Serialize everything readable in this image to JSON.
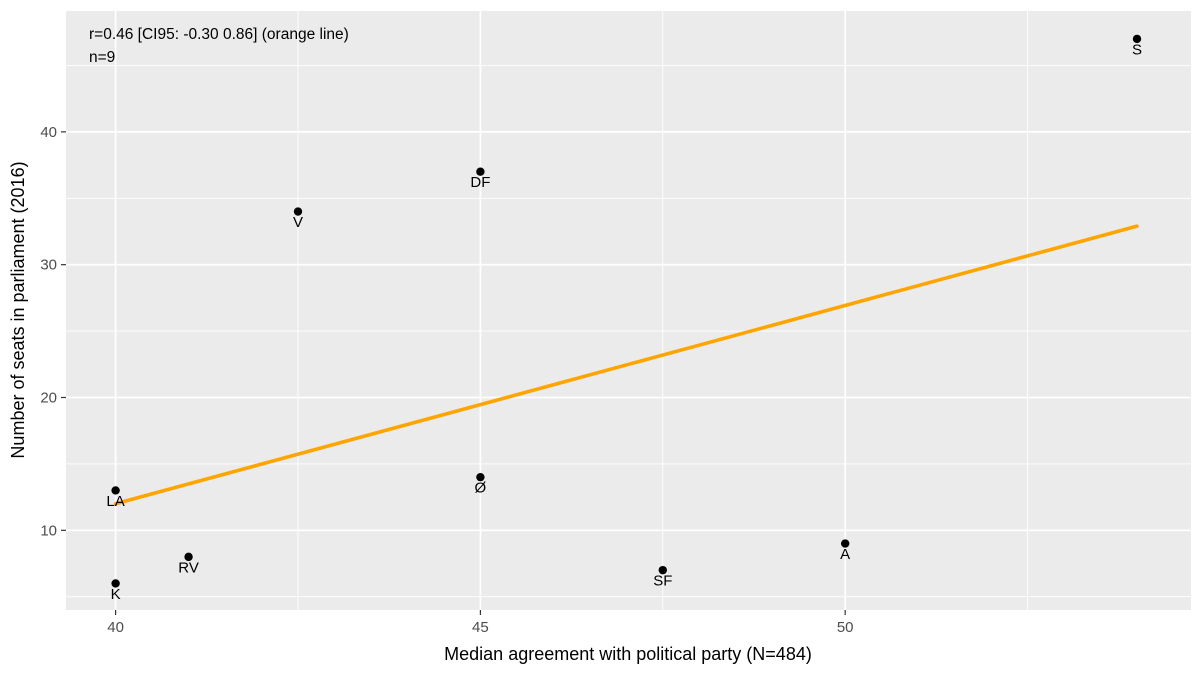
{
  "chart_data": {
    "type": "scatter",
    "title": "",
    "annotation_lines": [
      "r=0.46 [CI95: -0.30 0.86] (orange line)",
      "n=9"
    ],
    "xlabel": "Median agreement with political party (N=484)",
    "ylabel": "Number of seats in parliament (2016)",
    "points": [
      {
        "label": "S",
        "x": 54,
        "y": 47
      },
      {
        "label": "DF",
        "x": 45,
        "y": 37
      },
      {
        "label": "V",
        "x": 42.5,
        "y": 34
      },
      {
        "label": "Ø",
        "x": 45,
        "y": 14
      },
      {
        "label": "LA",
        "x": 40,
        "y": 13
      },
      {
        "label": "A",
        "x": 50,
        "y": 9
      },
      {
        "label": "RV",
        "x": 41,
        "y": 8
      },
      {
        "label": "SF",
        "x": 47.5,
        "y": 7
      },
      {
        "label": "K",
        "x": 40,
        "y": 6
      }
    ],
    "regression_line": {
      "x1": 40,
      "y1": 12.0,
      "x2": 54,
      "y2": 32.9,
      "r": 0.46,
      "ci95_low": -0.3,
      "ci95_high": 0.86,
      "n": 9,
      "color": "#FFA500"
    },
    "x_ticks": [
      40,
      45,
      50
    ],
    "y_ticks": [
      10,
      20,
      30,
      40
    ],
    "x_minor_ticks": [
      42.5,
      47.5,
      52.5
    ],
    "y_minor_ticks": [
      5,
      15,
      25,
      35,
      45
    ],
    "xlim": [
      39.32,
      54.74
    ],
    "ylim": [
      4.0,
      49.1
    ],
    "grid": true,
    "legend": "none",
    "colors": {
      "panel_background": "#EBEBEB",
      "gridline_major": "#FFFFFF",
      "gridline_minor": "#FFFFFF",
      "point": "#000000",
      "point_label": "#000000",
      "regression": "#FFA500",
      "tick_mark": "#333333",
      "tick_label": "#4D4D4D",
      "title_text": "#000000"
    }
  }
}
